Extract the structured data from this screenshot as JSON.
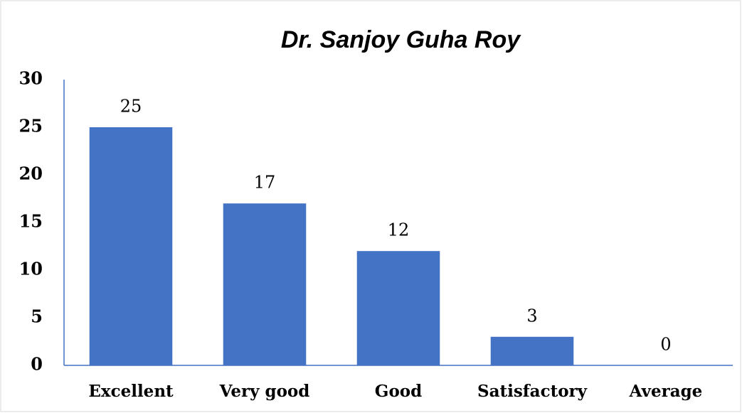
{
  "chart_data": {
    "type": "bar",
    "title": "Dr. Sanjoy Guha Roy",
    "categories": [
      "Excellent",
      "Very good",
      "Good",
      "Satisfactory",
      "Average"
    ],
    "values": [
      25,
      17,
      12,
      3,
      0
    ],
    "color": "#4472c4",
    "ylim": [
      0,
      30
    ],
    "yticks": [
      0,
      5,
      10,
      15,
      20,
      25,
      30
    ],
    "grid": false
  }
}
